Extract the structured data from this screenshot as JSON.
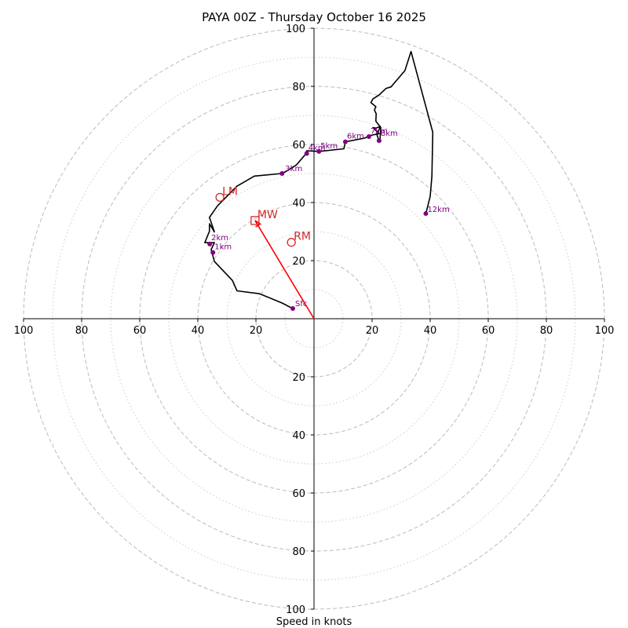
{
  "chart_data": {
    "type": "hodograph",
    "title": "PAYA 00Z - Thursday October 16 2025",
    "xlabel": "Speed in knots",
    "range": [
      -100,
      100
    ],
    "ring_major": [
      20,
      40,
      60,
      80,
      100
    ],
    "ring_minor": [
      10,
      30,
      50,
      70,
      90
    ],
    "x_ticks": [
      {
        "value": -100,
        "label": "100"
      },
      {
        "value": -80,
        "label": "80"
      },
      {
        "value": -60,
        "label": "60"
      },
      {
        "value": -40,
        "label": "40"
      },
      {
        "value": -20,
        "label": "20"
      },
      {
        "value": 20,
        "label": "20"
      },
      {
        "value": 40,
        "label": "40"
      },
      {
        "value": 60,
        "label": "60"
      },
      {
        "value": 80,
        "label": "80"
      },
      {
        "value": 100,
        "label": "100"
      }
    ],
    "y_ticks": [
      {
        "value": 100,
        "label": "100"
      },
      {
        "value": 80,
        "label": "80"
      },
      {
        "value": 60,
        "label": "60"
      },
      {
        "value": 40,
        "label": "40"
      },
      {
        "value": 20,
        "label": "20"
      },
      {
        "value": -20,
        "label": "20"
      },
      {
        "value": -40,
        "label": "40"
      },
      {
        "value": -60,
        "label": "60"
      },
      {
        "value": -80,
        "label": "80"
      },
      {
        "value": -100,
        "label": "100"
      }
    ],
    "trace": [
      [
        -7.3,
        3.5
      ],
      [
        -11.0,
        5.4
      ],
      [
        -18.7,
        8.6
      ],
      [
        -26.5,
        9.6
      ],
      [
        -28.1,
        13.2
      ],
      [
        -34.3,
        19.7
      ],
      [
        -35.4,
        23.8
      ],
      [
        -34.3,
        26.2
      ],
      [
        -37.6,
        26.2
      ],
      [
        -36.0,
        30.1
      ],
      [
        -36.0,
        32.7
      ],
      [
        -34.3,
        29.9
      ],
      [
        -36.0,
        34.9
      ],
      [
        -33.2,
        38.9
      ],
      [
        -29.7,
        42.4
      ],
      [
        -26.6,
        45.6
      ],
      [
        -20.5,
        49.1
      ],
      [
        -11.0,
        50.0
      ],
      [
        -9.5,
        50.8
      ],
      [
        -6.0,
        53.0
      ],
      [
        -3.0,
        56.5
      ],
      [
        -2.5,
        57.8
      ],
      [
        1.7,
        57.6
      ],
      [
        10.3,
        58.5
      ],
      [
        10.8,
        60.9
      ],
      [
        17.5,
        62.2
      ],
      [
        18.9,
        63.0
      ],
      [
        22.4,
        63.7
      ],
      [
        20.3,
        65.8
      ],
      [
        21.3,
        65.6
      ],
      [
        22.8,
        66.2
      ],
      [
        21.7,
        63.2
      ],
      [
        22.4,
        61.3
      ],
      [
        22.7,
        61.4
      ],
      [
        23.0,
        65.8
      ],
      [
        21.3,
        68.0
      ],
      [
        21.4,
        70.6
      ],
      [
        20.8,
        71.8
      ],
      [
        21.3,
        73.0
      ],
      [
        19.6,
        74.4
      ],
      [
        20.3,
        75.7
      ],
      [
        22.4,
        77.0
      ],
      [
        24.8,
        79.3
      ],
      [
        26.5,
        79.8
      ],
      [
        31.3,
        85.4
      ],
      [
        33.4,
        92.0
      ],
      [
        40.9,
        64.2
      ],
      [
        40.6,
        49.1
      ],
      [
        40.0,
        42.1
      ],
      [
        38.5,
        36.2
      ]
    ],
    "markers": [
      {
        "label": "Sfc",
        "x": -7.3,
        "y": 3.5,
        "dx": 3,
        "dy": -3
      },
      {
        "label": "1km",
        "x": -34.8,
        "y": 22.8,
        "dx": 2,
        "dy": -4
      },
      {
        "label": "2km",
        "x": -35.9,
        "y": 25.7,
        "dx": 2,
        "dy": -5
      },
      {
        "label": "3km",
        "x": -11.0,
        "y": 50.0,
        "dx": 4,
        "dy": -3
      },
      {
        "label": "4km",
        "x": -2.5,
        "y": 56.9,
        "dx": 2,
        "dy": -4
      },
      {
        "label": "5km",
        "x": 1.7,
        "y": 57.6,
        "dx": 2,
        "dy": -4
      },
      {
        "label": "6km",
        "x": 10.8,
        "y": 60.9,
        "dx": 2,
        "dy": -4
      },
      {
        "label": "7km",
        "x": 18.9,
        "y": 62.7,
        "dx": 2,
        "dy": -4
      },
      {
        "label": "8km",
        "x": 22.4,
        "y": 61.3,
        "dx": 2,
        "dy": -6
      },
      {
        "label": "12km",
        "x": 38.5,
        "y": 36.2,
        "dx": 2,
        "dy": -2
      }
    ],
    "storm_motion": [
      {
        "label": "LM",
        "x": -32.4,
        "y": 41.8,
        "shape": "circle"
      },
      {
        "label": "MW",
        "x": -20.3,
        "y": 33.8,
        "shape": "square"
      },
      {
        "label": "RM",
        "x": -7.8,
        "y": 26.3,
        "shape": "circle"
      }
    ],
    "shear_arrow": {
      "from": [
        0,
        0
      ],
      "to": [
        -20.3,
        33.8
      ]
    },
    "colors": {
      "trace": "#000000",
      "markers": "#800080",
      "storm": "#d62728",
      "arrow": "#ff0000",
      "grid": "#bbbbbb",
      "axis": "#000000"
    }
  }
}
